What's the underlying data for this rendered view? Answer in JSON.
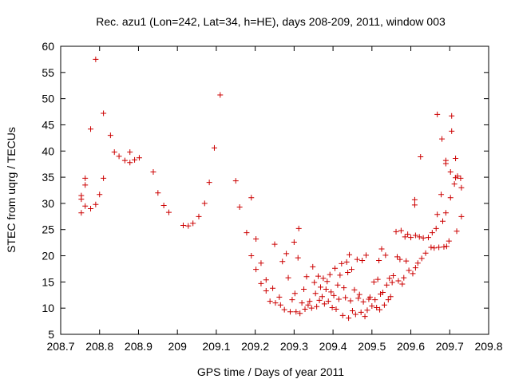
{
  "chart_data": {
    "type": "scatter",
    "title": "Rec. azu1 (Lon=242, Lat=34, h=HE), days 208-209, 2011, window 003",
    "xlabel": "GPS time / Days of year 2011",
    "ylabel": "STEC from uqrg / TECUs",
    "xlim": [
      208.7,
      209.8
    ],
    "ylim": [
      5,
      60
    ],
    "xticks": [
      "208.7",
      "208.8",
      "208.9",
      "209",
      "209.1",
      "209.2",
      "209.3",
      "209.4",
      "209.5",
      "209.6",
      "209.7",
      "209.8"
    ],
    "yticks": [
      "5",
      "10",
      "15",
      "20",
      "25",
      "30",
      "35",
      "40",
      "45",
      "50",
      "55",
      "60"
    ],
    "marker": "+",
    "color": "#cc0000",
    "grid": false,
    "legend": "none",
    "points": [
      [
        208.753,
        28.2
      ],
      [
        208.753,
        30.8
      ],
      [
        208.753,
        31.5
      ],
      [
        208.763,
        29.5
      ],
      [
        208.763,
        33.5
      ],
      [
        208.763,
        34.8
      ],
      [
        208.777,
        29.0
      ],
      [
        208.777,
        44.2
      ],
      [
        208.79,
        57.5
      ],
      [
        208.79,
        29.8
      ],
      [
        208.8,
        31.7
      ],
      [
        208.81,
        34.8
      ],
      [
        208.81,
        47.2
      ],
      [
        208.828,
        43.0
      ],
      [
        208.838,
        39.8
      ],
      [
        208.85,
        39.0
      ],
      [
        208.865,
        38.2
      ],
      [
        208.878,
        39.8
      ],
      [
        208.878,
        37.8
      ],
      [
        208.89,
        38.3
      ],
      [
        208.902,
        38.7
      ],
      [
        208.938,
        36.0
      ],
      [
        208.95,
        32.0
      ],
      [
        208.965,
        29.6
      ],
      [
        208.978,
        28.3
      ],
      [
        209.015,
        25.8
      ],
      [
        209.028,
        25.7
      ],
      [
        209.04,
        26.2
      ],
      [
        209.055,
        27.5
      ],
      [
        209.07,
        30.0
      ],
      [
        209.082,
        34.0
      ],
      [
        209.095,
        40.6
      ],
      [
        209.11,
        50.7
      ],
      [
        209.15,
        34.3
      ],
      [
        209.16,
        29.3
      ],
      [
        209.178,
        24.4
      ],
      [
        209.19,
        31.1
      ],
      [
        209.19,
        20.0
      ],
      [
        209.202,
        23.2
      ],
      [
        209.202,
        17.4
      ],
      [
        209.215,
        18.6
      ],
      [
        209.215,
        14.7
      ],
      [
        209.228,
        15.4
      ],
      [
        209.228,
        13.3
      ],
      [
        209.238,
        11.3
      ],
      [
        209.245,
        13.8
      ],
      [
        209.25,
        22.2
      ],
      [
        209.252,
        11.0
      ],
      [
        209.262,
        12.1
      ],
      [
        209.265,
        10.6
      ],
      [
        209.27,
        18.9
      ],
      [
        209.275,
        9.7
      ],
      [
        209.28,
        20.4
      ],
      [
        209.285,
        15.8
      ],
      [
        209.29,
        9.3
      ],
      [
        209.295,
        11.6
      ],
      [
        209.3,
        22.6
      ],
      [
        209.302,
        12.8
      ],
      [
        209.305,
        9.3
      ],
      [
        209.31,
        19.6
      ],
      [
        209.312,
        25.2
      ],
      [
        209.315,
        9.0
      ],
      [
        209.32,
        11.0
      ],
      [
        209.325,
        13.6
      ],
      [
        209.328,
        9.8
      ],
      [
        209.332,
        16.0
      ],
      [
        209.336,
        10.6
      ],
      [
        209.34,
        11.3
      ],
      [
        209.345,
        10.0
      ],
      [
        209.348,
        17.9
      ],
      [
        209.352,
        14.9
      ],
      [
        209.355,
        12.8
      ],
      [
        209.358,
        10.3
      ],
      [
        209.362,
        16.1
      ],
      [
        209.365,
        11.5
      ],
      [
        209.368,
        14.0
      ],
      [
        209.372,
        12.2
      ],
      [
        209.375,
        15.7
      ],
      [
        209.378,
        10.8
      ],
      [
        209.382,
        13.6
      ],
      [
        209.385,
        15.1
      ],
      [
        209.388,
        11.3
      ],
      [
        209.392,
        16.4
      ],
      [
        209.395,
        13.1
      ],
      [
        209.398,
        10.1
      ],
      [
        209.402,
        12.4
      ],
      [
        209.405,
        17.6
      ],
      [
        209.408,
        9.8
      ],
      [
        209.412,
        14.4
      ],
      [
        209.415,
        11.7
      ],
      [
        209.418,
        16.3
      ],
      [
        209.422,
        18.5
      ],
      [
        209.425,
        8.6
      ],
      [
        209.428,
        13.9
      ],
      [
        209.432,
        12.0
      ],
      [
        209.435,
        18.8
      ],
      [
        209.438,
        16.8
      ],
      [
        209.44,
        8.1
      ],
      [
        209.442,
        20.2
      ],
      [
        209.445,
        11.4
      ],
      [
        209.448,
        17.4
      ],
      [
        209.45,
        9.5
      ],
      [
        209.455,
        13.5
      ],
      [
        209.458,
        8.8
      ],
      [
        209.462,
        19.3
      ],
      [
        209.465,
        11.9
      ],
      [
        209.468,
        12.6
      ],
      [
        209.472,
        9.2
      ],
      [
        209.475,
        19.1
      ],
      [
        209.478,
        11.2
      ],
      [
        209.482,
        8.4
      ],
      [
        209.485,
        20.1
      ],
      [
        209.488,
        9.6
      ],
      [
        209.492,
        11.7
      ],
      [
        209.495,
        12.1
      ],
      [
        209.5,
        10.4
      ],
      [
        209.505,
        15.0
      ],
      [
        209.508,
        11.6
      ],
      [
        209.512,
        10.1
      ],
      [
        209.515,
        15.5
      ],
      [
        209.518,
        19.1
      ],
      [
        209.52,
        9.7
      ],
      [
        209.522,
        12.7
      ],
      [
        209.525,
        21.3
      ],
      [
        209.528,
        13.0
      ],
      [
        209.532,
        10.6
      ],
      [
        209.535,
        20.1
      ],
      [
        209.538,
        14.4
      ],
      [
        209.542,
        11.6
      ],
      [
        209.545,
        15.7
      ],
      [
        209.548,
        12.2
      ],
      [
        209.552,
        14.9
      ],
      [
        209.555,
        16.2
      ],
      [
        209.562,
        24.6
      ],
      [
        209.565,
        19.8
      ],
      [
        209.568,
        15.2
      ],
      [
        209.572,
        19.3
      ],
      [
        209.575,
        24.8
      ],
      [
        209.578,
        14.6
      ],
      [
        209.582,
        15.8
      ],
      [
        209.585,
        23.6
      ],
      [
        209.588,
        19.0
      ],
      [
        209.592,
        24.1
      ],
      [
        209.595,
        17.2
      ],
      [
        209.6,
        23.5
      ],
      [
        209.605,
        16.6
      ],
      [
        209.61,
        29.7
      ],
      [
        209.61,
        30.7
      ],
      [
        209.612,
        23.9
      ],
      [
        209.612,
        17.7
      ],
      [
        209.618,
        18.6
      ],
      [
        209.622,
        23.6
      ],
      [
        209.625,
        38.9
      ],
      [
        209.628,
        19.5
      ],
      [
        209.632,
        23.4
      ],
      [
        209.638,
        20.5
      ],
      [
        209.645,
        23.5
      ],
      [
        209.652,
        21.6
      ],
      [
        209.655,
        24.4
      ],
      [
        209.66,
        21.5
      ],
      [
        209.665,
        25.2
      ],
      [
        209.668,
        47.0
      ],
      [
        209.668,
        27.9
      ],
      [
        209.672,
        21.6
      ],
      [
        209.678,
        31.7
      ],
      [
        209.68,
        42.3
      ],
      [
        209.682,
        26.6
      ],
      [
        209.685,
        21.7
      ],
      [
        209.69,
        28.2
      ],
      [
        209.69,
        37.6
      ],
      [
        209.69,
        38.2
      ],
      [
        209.692,
        21.8
      ],
      [
        209.698,
        22.8
      ],
      [
        209.702,
        36.0
      ],
      [
        209.702,
        31.1
      ],
      [
        209.705,
        43.8
      ],
      [
        209.705,
        46.7
      ],
      [
        209.712,
        33.7
      ],
      [
        209.715,
        34.9
      ],
      [
        209.715,
        38.6
      ],
      [
        209.718,
        24.7
      ],
      [
        209.72,
        35.2
      ],
      [
        209.728,
        34.8
      ],
      [
        209.73,
        27.5
      ],
      [
        209.73,
        33.0
      ]
    ]
  }
}
